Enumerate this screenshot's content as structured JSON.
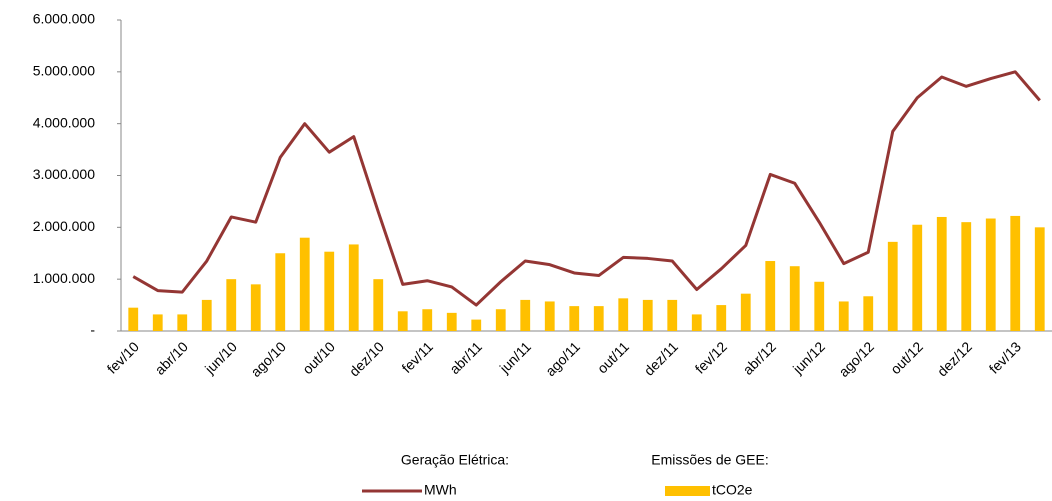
{
  "chart_data": {
    "type": "bar_line",
    "categories": [
      "fev/10",
      null,
      "abr/10",
      null,
      "jun/10",
      null,
      "ago/10",
      null,
      "out/10",
      null,
      "dez/10",
      null,
      "fev/11",
      null,
      "abr/11",
      null,
      "jun/11",
      null,
      "ago/11",
      null,
      "out/11",
      null,
      "dez/11",
      null,
      "fev/12",
      null,
      "abr/12",
      null,
      "jun/12",
      null,
      "ago/12",
      null,
      "out/12",
      null,
      "dez/12",
      null,
      "fev/13",
      null
    ],
    "series": [
      {
        "name": "MWh",
        "group": "Geração Elétrica:",
        "kind": "line",
        "color": "#943634",
        "values": [
          1050000,
          780000,
          750000,
          1350000,
          2200000,
          2100000,
          3350000,
          4000000,
          3450000,
          3750000,
          2300000,
          900000,
          970000,
          850000,
          500000,
          950000,
          1350000,
          1280000,
          1120000,
          1070000,
          1420000,
          1400000,
          1350000,
          800000,
          1200000,
          1650000,
          3020000,
          2850000,
          2100000,
          1300000,
          1520000,
          3850000,
          4500000,
          4900000,
          4720000,
          4870000,
          5000000,
          4450000
        ]
      },
      {
        "name": "tCO2e",
        "group": "Emissões de GEE:",
        "kind": "bar",
        "color": "#ffc000",
        "values": [
          450000,
          320000,
          320000,
          600000,
          1000000,
          900000,
          1500000,
          1800000,
          1530000,
          1670000,
          1000000,
          380000,
          420000,
          350000,
          220000,
          420000,
          600000,
          570000,
          480000,
          480000,
          630000,
          600000,
          600000,
          320000,
          500000,
          720000,
          1350000,
          1250000,
          950000,
          570000,
          670000,
          1720000,
          2050000,
          2200000,
          2100000,
          2170000,
          2220000,
          2000000
        ]
      }
    ],
    "ylim": [
      0,
      6000000
    ],
    "yticks": [
      {
        "value": 0,
        "label": "-"
      },
      {
        "value": 1000000,
        "label": "1.000.000"
      },
      {
        "value": 2000000,
        "label": "2.000.000"
      },
      {
        "value": 3000000,
        "label": "3.000.000"
      },
      {
        "value": 4000000,
        "label": "4.000.000"
      },
      {
        "value": 5000000,
        "label": "5.000.000"
      },
      {
        "value": 6000000,
        "label": "6.000.000"
      }
    ],
    "grid": false
  }
}
